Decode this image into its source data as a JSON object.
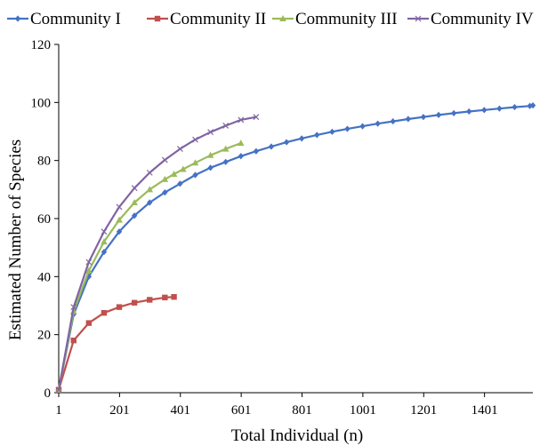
{
  "chart_data": {
    "type": "line",
    "xlabel": "Total Individual (n)",
    "ylabel": "Estimated Number of Species",
    "xlim": [
      1,
      1560
    ],
    "ylim": [
      0,
      120
    ],
    "x_ticks": [
      "1",
      "201",
      "401",
      "601",
      "801",
      "1001",
      "1201",
      "1401"
    ],
    "y_ticks": [
      "0",
      "20",
      "40",
      "60",
      "80",
      "100",
      "120"
    ],
    "legend_position": "top",
    "grid": false,
    "series": [
      {
        "name": "Community I",
        "color": "#4472c4",
        "marker": "diamond",
        "x": [
          1,
          50,
          100,
          150,
          200,
          250,
          300,
          350,
          400,
          450,
          500,
          550,
          600,
          650,
          700,
          750,
          800,
          850,
          900,
          950,
          1000,
          1050,
          1100,
          1150,
          1200,
          1250,
          1300,
          1350,
          1400,
          1450,
          1500,
          1550,
          1560
        ],
        "y": [
          1,
          27,
          40,
          48.5,
          55.5,
          61,
          65.5,
          69,
          72,
          75,
          77.5,
          79.5,
          81.5,
          83.2,
          84.8,
          86.3,
          87.6,
          88.8,
          89.9,
          90.9,
          91.8,
          92.7,
          93.5,
          94.3,
          95,
          95.7,
          96.3,
          96.9,
          97.4,
          97.9,
          98.4,
          98.8,
          99
        ]
      },
      {
        "name": "Community II",
        "color": "#c0504d",
        "marker": "square",
        "x": [
          1,
          50,
          100,
          150,
          200,
          250,
          300,
          350,
          380
        ],
        "y": [
          1,
          18,
          24,
          27.5,
          29.5,
          31,
          32,
          32.8,
          33
        ]
      },
      {
        "name": "Community III",
        "color": "#9bbb59",
        "marker": "triangle",
        "x": [
          1,
          50,
          100,
          150,
          200,
          250,
          300,
          350,
          380,
          410,
          450,
          500,
          550,
          600
        ],
        "y": [
          1,
          28,
          42,
          52,
          59.5,
          65.5,
          70,
          73.5,
          75.3,
          77,
          79.2,
          81.8,
          84,
          86
        ]
      },
      {
        "name": "Community IV",
        "color": "#8064a2",
        "marker": "x",
        "x": [
          1,
          50,
          100,
          150,
          200,
          250,
          300,
          350,
          400,
          450,
          500,
          550,
          600,
          650
        ],
        "y": [
          1,
          29.5,
          45,
          55.5,
          64,
          70.5,
          75.8,
          80.2,
          84,
          87.2,
          89.8,
          92,
          94,
          95
        ]
      }
    ]
  }
}
